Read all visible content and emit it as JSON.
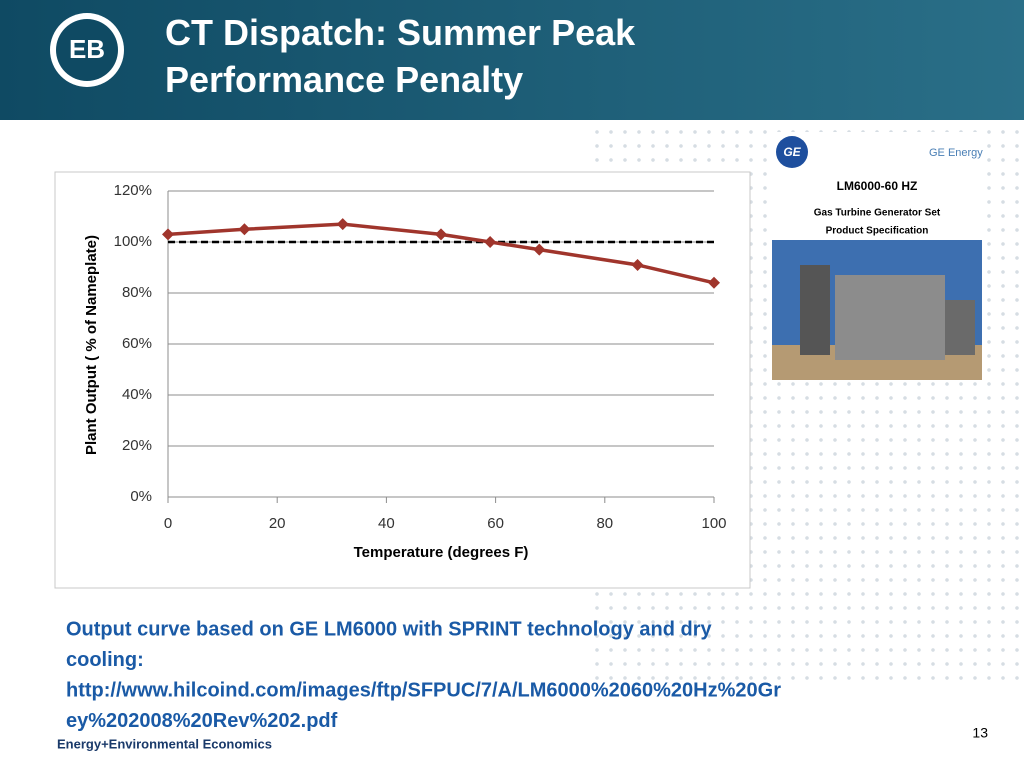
{
  "header": {
    "title": "CT Dispatch: Summer Peak Performance Penalty",
    "logo": "EB"
  },
  "chart_data": {
    "type": "line",
    "x_label": "Temperature (degrees F)",
    "y_label": "Plant Output ( % of Nameplate)",
    "x": [
      0,
      14,
      32,
      50,
      59,
      68,
      86,
      100
    ],
    "series": [
      {
        "color": "#a0352c",
        "values": [
          103,
          105,
          107,
          103,
          100,
          97,
          91,
          84
        ]
      }
    ],
    "hline": 100,
    "xlim": [
      0,
      100
    ],
    "xticks": [
      0,
      20,
      40,
      60,
      80,
      100
    ],
    "ylim": [
      0,
      120
    ],
    "yticks": [
      {
        "value": 0,
        "label": "0%"
      },
      {
        "value": 20,
        "label": "20%"
      },
      {
        "value": 40,
        "label": "40%"
      },
      {
        "value": 60,
        "label": "60%"
      },
      {
        "value": 80,
        "label": "80%"
      },
      {
        "value": 100,
        "label": "100%"
      },
      {
        "value": 120,
        "label": "120%"
      }
    ],
    "grid": true
  },
  "spec_image": {
    "brand": "GE Energy",
    "ge": "GE",
    "model": "LM6000-60 HZ",
    "line1": "Gas Turbine Generator Set",
    "line2": "Product Specification"
  },
  "caption": [
    "Output curve based on GE LM6000 with SPRINT technology and dry",
    "cooling:",
    "http://www.hilcoind.com/images/ftp/SFPUC/7/A/LM6000%2060%20Hz%20Gr",
    "ey%202008%20Rev%202.pdf"
  ],
  "footer": {
    "company": "Energy+Environmental Economics",
    "page": "13"
  }
}
